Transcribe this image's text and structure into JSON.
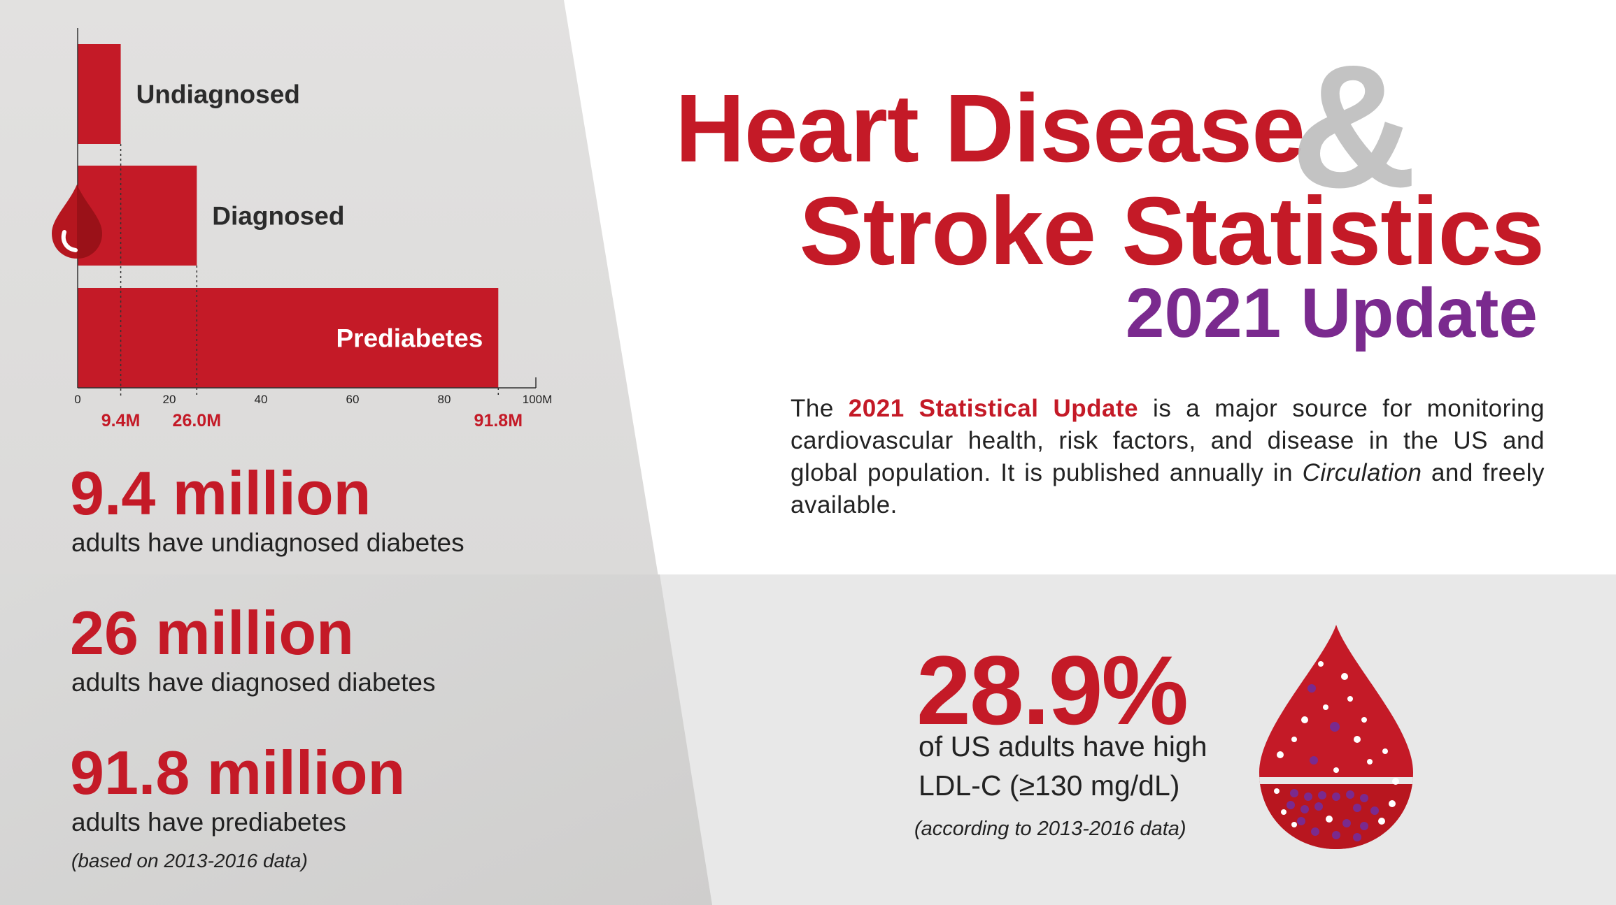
{
  "title": {
    "line1": "Heart Disease",
    "ampersand": "&",
    "line2": "Stroke Statistics",
    "update": "2021 Update"
  },
  "intro": {
    "before": "The ",
    "highlight": "2021 Statistical Update",
    "middle": " is a major source for monitoring cardiovascular health, risk factors, and disease in the US and global population. It is published annually in ",
    "italic": "Circulation",
    "after": " and freely available."
  },
  "stats": [
    {
      "big": "9.4 million",
      "sub": "adults have undiagnosed diabetes"
    },
    {
      "big": "26 million",
      "sub": "adults have diagnosed diabetes"
    },
    {
      "big": "91.8 million",
      "sub": "adults have prediabetes"
    }
  ],
  "stats_note": "(based on 2013-2016 data)",
  "ldl": {
    "big": "28.9%",
    "sub1": "of US adults have high",
    "sub2": "LDL-C (≥130 mg/dL)",
    "note": "(according to 2013-2016 data)"
  },
  "colors": {
    "red": "#c41a27",
    "purple": "#7a2a8e",
    "gray": "#c0c0c0",
    "dark": "#222222"
  },
  "icons": [
    "blood-drop-icon",
    "blood-drop-illustration"
  ],
  "chart_data": {
    "type": "bar",
    "orientation": "horizontal",
    "categories": [
      "Undiagnosed",
      "Diagnosed",
      "Prediabetes"
    ],
    "values": [
      9.4,
      26.0,
      91.8
    ],
    "value_labels": [
      "9.4M",
      "26.0M",
      "91.8M"
    ],
    "xlim": [
      0,
      100
    ],
    "xticks": [
      "0",
      "20",
      "40",
      "60",
      "80",
      "100M"
    ],
    "xtick_values": [
      0,
      20,
      40,
      60,
      80,
      100
    ]
  }
}
